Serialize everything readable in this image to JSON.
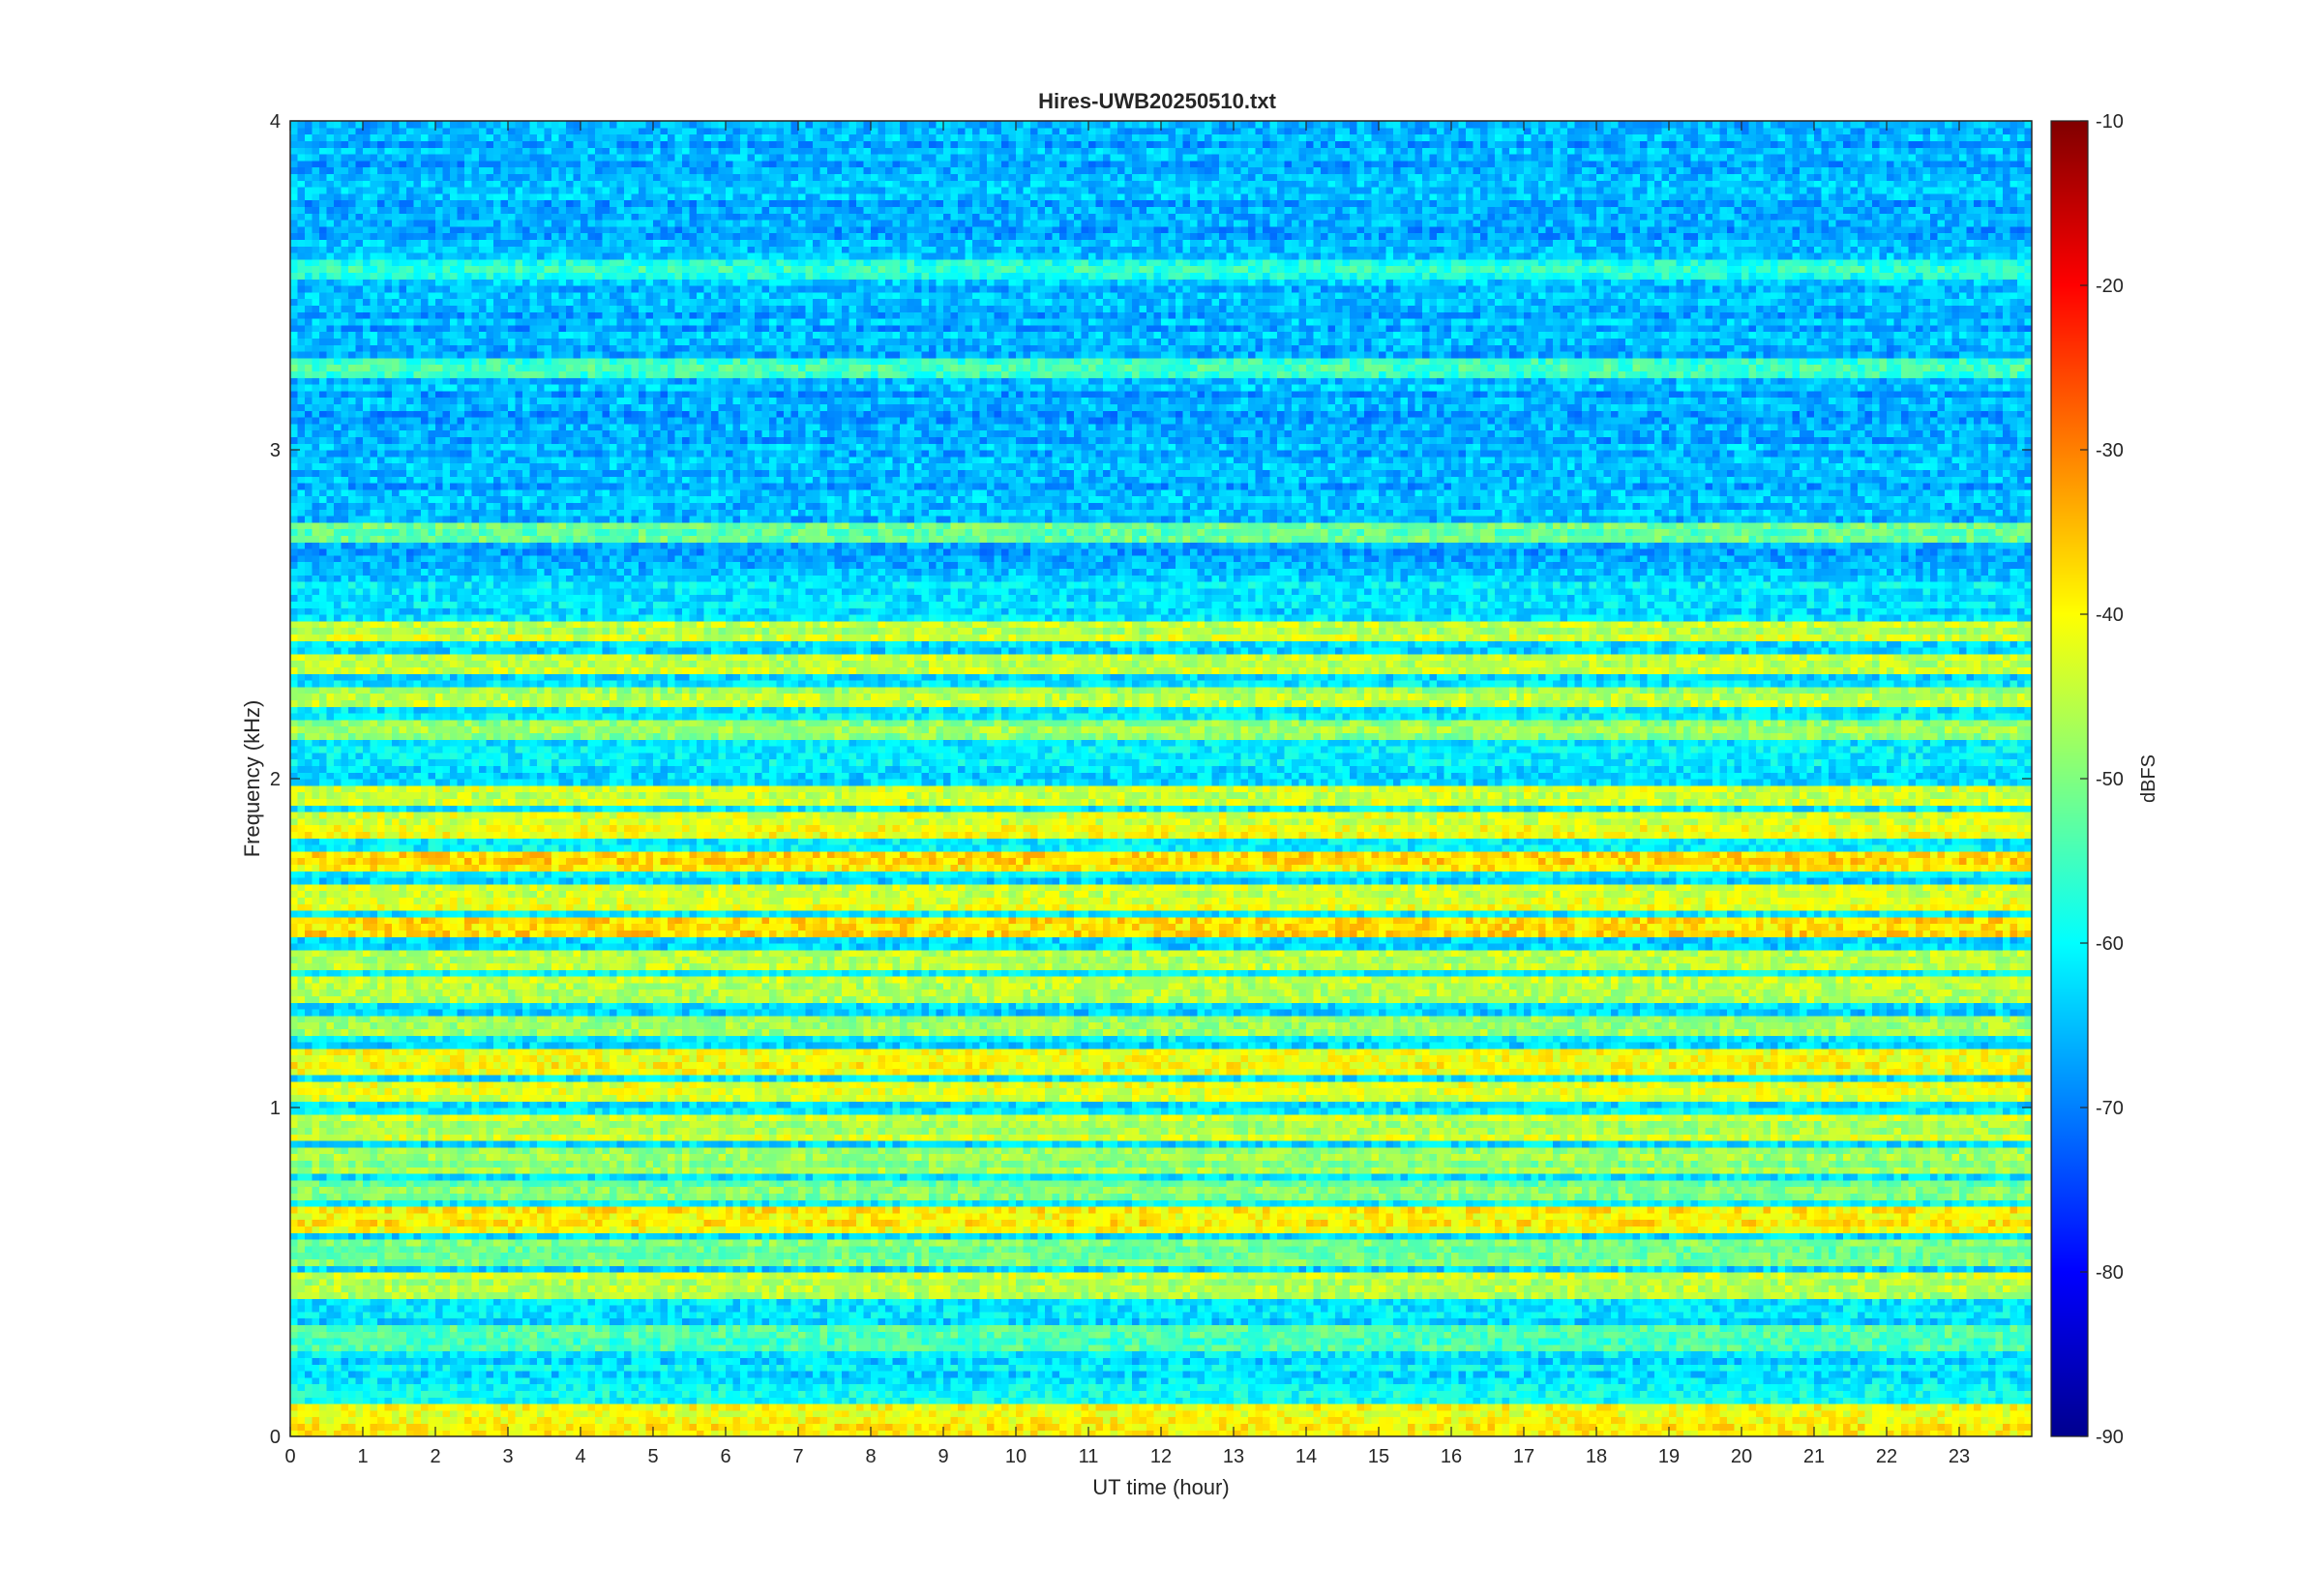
{
  "chart_data": {
    "type": "heatmap",
    "title": "Hires-UWB20250510.txt",
    "xlabel": "UT time (hour)",
    "ylabel": "Frequency (kHz)",
    "xlim": [
      0,
      24
    ],
    "ylim": [
      0,
      4
    ],
    "x_ticks": [
      "0",
      "1",
      "2",
      "3",
      "4",
      "5",
      "6",
      "7",
      "8",
      "9",
      "10",
      "11",
      "12",
      "13",
      "14",
      "15",
      "16",
      "17",
      "18",
      "19",
      "20",
      "21",
      "22",
      "23"
    ],
    "y_ticks": [
      "0",
      "1",
      "2",
      "3",
      "4"
    ],
    "colorbar": {
      "label": "dBFS",
      "range": [
        -90,
        -10
      ],
      "ticks": [
        "-10",
        "-20",
        "-30",
        "-40",
        "-50",
        "-60",
        "-70",
        "-80",
        "-90"
      ],
      "colormap": "jet"
    },
    "bands_khz": [
      {
        "f": 0.05,
        "level": -40
      },
      {
        "f": 0.15,
        "level": -60
      },
      {
        "f": 0.3,
        "level": -55
      },
      {
        "f": 0.45,
        "level": -45
      },
      {
        "f": 0.55,
        "level": -50
      },
      {
        "f": 0.65,
        "level": -40
      },
      {
        "f": 0.75,
        "level": -50
      },
      {
        "f": 0.85,
        "level": -48
      },
      {
        "f": 0.95,
        "level": -45
      },
      {
        "f": 1.05,
        "level": -42
      },
      {
        "f": 1.15,
        "level": -40
      },
      {
        "f": 1.25,
        "level": -48
      },
      {
        "f": 1.35,
        "level": -45
      },
      {
        "f": 1.45,
        "level": -45
      },
      {
        "f": 1.55,
        "level": -37
      },
      {
        "f": 1.65,
        "level": -43
      },
      {
        "f": 1.75,
        "level": -38
      },
      {
        "f": 1.85,
        "level": -42
      },
      {
        "f": 1.95,
        "level": -44
      },
      {
        "f": 2.15,
        "level": -47
      },
      {
        "f": 2.25,
        "level": -46
      },
      {
        "f": 2.35,
        "level": -45
      },
      {
        "f": 2.45,
        "level": -45
      },
      {
        "f": 2.75,
        "level": -52
      },
      {
        "f": 3.25,
        "level": -55
      },
      {
        "f": 3.55,
        "level": -57
      }
    ],
    "background_level": -62
  }
}
